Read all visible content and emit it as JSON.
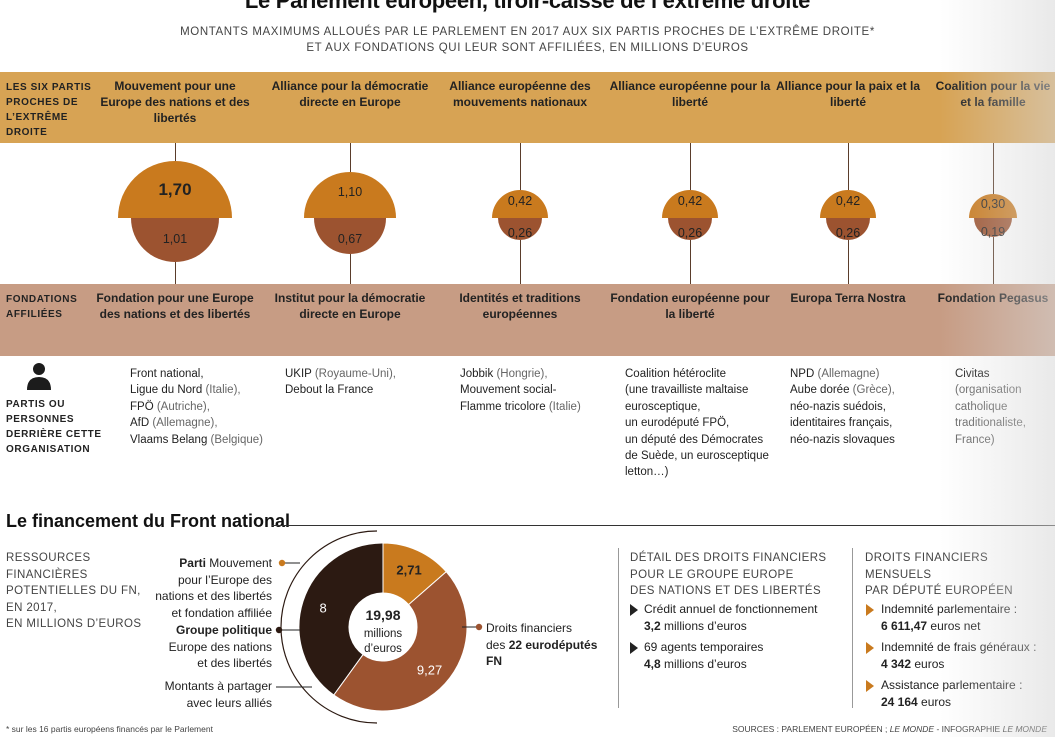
{
  "header": {
    "title": "Le Parlement européen, tiroir-caisse de l’extrême droite",
    "subtitle_line1": "MONTANTS MAXIMUMS ALLOUÉS PAR LE PARLEMENT EN 2017 AUX SIX PARTIS PROCHES DE L’EXTRÊME DROITE*",
    "subtitle_line2": "ET AUX FONDATIONS QUI LEUR SONT AFFILIÉES, EN MILLIONS D’EUROS"
  },
  "row_labels": {
    "parties": "LES SIX PARTIS PROCHES DE L’EXTRÊME DROITE",
    "foundations": "FONDATIONS AFFILIÉES",
    "persons": "PARTIS OU PERSONNES DERRIÈRE CETTE ORGANISATION"
  },
  "columns": [
    {
      "party": "Mouvement pour une Europe des nations et des libertés",
      "foundation": "Fondation pour une Europe des nations et des libertés"
    },
    {
      "party": "Alliance pour la démocratie directe en Europe",
      "foundation": "Institut pour la démocratie directe en Europe"
    },
    {
      "party": "Alliance européenne des mouvements nationaux",
      "foundation": "Identités et traditions européennes"
    },
    {
      "party": "Alliance européenne pour la liberté",
      "foundation": "Fondation européenne pour la liberté"
    },
    {
      "party": "Alliance pour la paix et la liberté",
      "foundation": "Europa Terra Nostra"
    },
    {
      "party": "Coalition pour la vie et la famille",
      "foundation": "Fondation Pegasus"
    }
  ],
  "members": [
    [
      [
        "Front national,",
        ""
      ],
      [
        "Ligue du Nord ",
        "(Italie),"
      ],
      [
        "FPÖ ",
        "(Autriche),"
      ],
      [
        "AfD ",
        "(Allemagne),"
      ],
      [
        "Vlaams Belang ",
        "(Belgique)"
      ]
    ],
    [
      [
        "UKIP ",
        "(Royaume-Uni),"
      ],
      [
        "Debout la France",
        ""
      ]
    ],
    [
      [
        "Jobbik ",
        "(Hongrie),"
      ],
      [
        "Mouvement social-",
        ""
      ],
      [
        "Flamme tricolore ",
        "(Italie)"
      ]
    ],
    [
      [
        "Coalition hétéroclite",
        ""
      ],
      [
        "(une travailliste maltaise",
        ""
      ],
      [
        "eurosceptique,",
        ""
      ],
      [
        "un eurodéputé FPÖ,",
        ""
      ],
      [
        "un député des Démocrates",
        ""
      ],
      [
        "de Suède, un eurosceptique",
        ""
      ],
      [
        "letton…)",
        ""
      ]
    ],
    [
      [
        "NPD ",
        "(Allemagne)"
      ],
      [
        "Aube dorée ",
        "(Grèce),"
      ],
      [
        "néo-nazis suédois,",
        ""
      ],
      [
        "identitaires français,",
        ""
      ],
      [
        "néo-nazis slovaques",
        ""
      ]
    ],
    [
      [
        "Civitas",
        ""
      ],
      [
        "",
        "(organisation"
      ],
      [
        "",
        "catholique"
      ],
      [
        "",
        "traditionaliste,"
      ],
      [
        "",
        "France)"
      ]
    ]
  ],
  "chart_data": [
    {
      "type": "bar",
      "categories": [
        "Mouvement pour une Europe des nations et des libertés",
        "Alliance pour la démocratie directe en Europe",
        "Alliance européenne des mouvements nationaux",
        "Alliance européenne pour la liberté",
        "Alliance pour la paix et la liberté",
        "Coalition pour la vie et la famille"
      ],
      "series": [
        {
          "name": "LES SIX PARTIS PROCHES DE L’EXTRÊME DROITE",
          "values": [
            1.7,
            1.1,
            0.42,
            0.42,
            0.42,
            0.3
          ],
          "labels": [
            "1,70",
            "1,10",
            "0,42",
            "0,42",
            "0,42",
            "0,30"
          ],
          "color": "#c97a1e"
        },
        {
          "name": "FONDATIONS AFFILIÉES",
          "values": [
            1.01,
            0.67,
            0.26,
            0.26,
            0.26,
            0.19
          ],
          "labels": [
            "1,01",
            "0,67",
            "0,26",
            "0,26",
            "0,26",
            "0,19"
          ],
          "color": "#9c5330"
        }
      ]
    },
    {
      "type": "pie",
      "categories": [
        "Parti",
        "Groupe politique",
        "Droits financiers"
      ],
      "values": [
        2.71,
        8,
        9.27
      ],
      "labels": [
        "2,71",
        "8",
        "9,27"
      ],
      "colors": [
        "#c97a1e",
        "#2c1a12",
        "#9c5330"
      ],
      "center_value": "19,98",
      "center_unit_1": "millions",
      "center_unit_2": "d’euros"
    }
  ],
  "fn_section": {
    "title": "Le financement du Front national",
    "resources_label": [
      "RESSOURCES",
      "FINANCIÈRES",
      "POTENTIELLES DU FN,",
      "EN 2017,",
      "EN MILLIONS D’EUROS"
    ],
    "label_parti_bold": "Parti",
    "label_parti_rest": " Mouvement",
    "label_parti_lines": [
      "pour l’Europe des",
      "nations et des libertés",
      "et fondation affiliée"
    ],
    "label_groupe_bold": "Groupe politique",
    "label_groupe_lines": [
      "Europe des nations",
      "et des libertés"
    ],
    "label_montants_lines": [
      "Montants à partager",
      "avec leurs alliés"
    ],
    "label_droits_line1": "Droits financiers",
    "label_droits_line2_pre": "des ",
    "label_droits_line2_bold": "22 eurodéputés",
    "label_droits_line3_bold": "FN"
  },
  "detail_group": {
    "title": [
      "DÉTAIL DES DROITS FINANCIERS",
      "POUR LE GROUPE EUROPE",
      "DES NATIONS ET DES LIBERTÉS"
    ],
    "items": [
      {
        "label": "Crédit annuel de fonctionnement",
        "value_bold": "3,2",
        "value_rest": " millions d’euros"
      },
      {
        "label": "69 agents temporaires",
        "value_bold": "4,8",
        "value_rest": " millions d’euros"
      }
    ]
  },
  "monthly": {
    "title": [
      "DROITS FINANCIERS MENSUELS",
      "PAR DÉPUTÉ EUROPÉEN"
    ],
    "items": [
      {
        "label": "Indemnité parlementaire :",
        "value_bold": "6 611,47",
        "value_rest": " euros net"
      },
      {
        "label": "Indemnité de frais généraux :",
        "value_bold": "4 342",
        "value_rest": " euros"
      },
      {
        "label": "Assistance parlementaire :",
        "value_bold": "24 164",
        "value_rest": " euros"
      }
    ]
  },
  "footnote": "* sur les 16 partis européens financés par le Parlement",
  "sources_pre": "SOURCES : PARLEMENT EUROPÉEN ; ",
  "sources_lemonde1": "LE MONDE",
  "sources_mid": " - INFOGRAPHIE ",
  "sources_lemonde2": "LE MONDE"
}
